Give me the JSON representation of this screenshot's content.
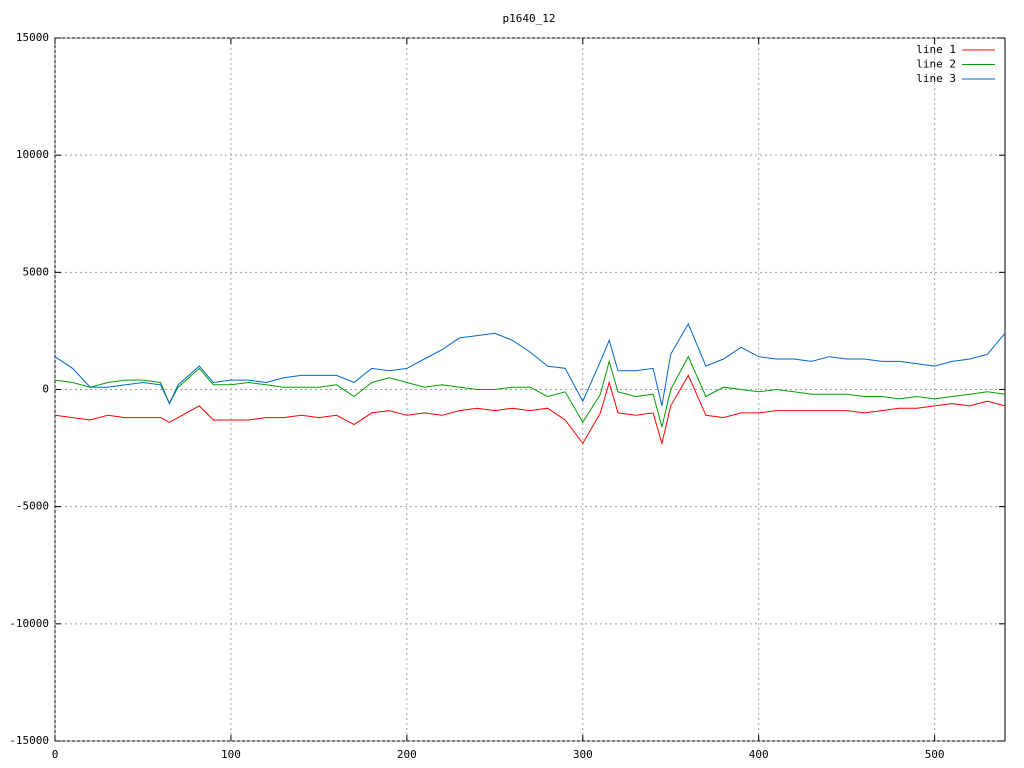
{
  "chart_data": {
    "type": "line",
    "title": "p1640_12",
    "x": [
      0,
      10,
      20,
      30,
      40,
      50,
      60,
      65,
      70,
      82,
      90,
      100,
      110,
      120,
      130,
      140,
      150,
      160,
      170,
      180,
      190,
      200,
      210,
      220,
      230,
      240,
      250,
      260,
      270,
      280,
      290,
      300,
      310,
      315,
      320,
      330,
      340,
      345,
      350,
      360,
      370,
      380,
      390,
      400,
      410,
      420,
      430,
      440,
      450,
      460,
      470,
      480,
      490,
      500,
      510,
      520,
      530,
      540
    ],
    "series": [
      {
        "name": "line 1",
        "color": "#ff0000",
        "values": [
          -1100,
          -1200,
          -1300,
          -1100,
          -1200,
          -1200,
          -1200,
          -1400,
          -1200,
          -700,
          -1300,
          -1300,
          -1300,
          -1200,
          -1200,
          -1100,
          -1200,
          -1100,
          -1500,
          -1000,
          -900,
          -1100,
          -1000,
          -1100,
          -900,
          -800,
          -900,
          -800,
          -900,
          -800,
          -1300,
          -2300,
          -1000,
          300,
          -1000,
          -1100,
          -1000,
          -2300,
          -700,
          600,
          -1100,
          -1200,
          -1000,
          -1000,
          -900,
          -900,
          -900,
          -900,
          -900,
          -1000,
          -900,
          -800,
          -800,
          -700,
          -600,
          -700,
          -500,
          -700
        ]
      },
      {
        "name": "line 2",
        "color": "#00a000",
        "values": [
          400,
          300,
          100,
          300,
          400,
          400,
          300,
          -600,
          100,
          900,
          200,
          200,
          300,
          200,
          100,
          100,
          100,
          200,
          -300,
          300,
          500,
          300,
          100,
          200,
          100,
          0,
          0,
          100,
          100,
          -300,
          -100,
          -1400,
          -200,
          1200,
          -100,
          -300,
          -200,
          -1600,
          0,
          1400,
          -300,
          100,
          0,
          -100,
          0,
          -100,
          -200,
          -200,
          -200,
          -300,
          -300,
          -400,
          -300,
          -400,
          -300,
          -200,
          -100,
          -200
        ]
      },
      {
        "name": "line 3",
        "color": "#0066cc",
        "values": [
          1400,
          900,
          100,
          100,
          200,
          300,
          200,
          -600,
          200,
          1000,
          300,
          400,
          400,
          300,
          500,
          600,
          600,
          600,
          300,
          900,
          800,
          900,
          1300,
          1700,
          2200,
          2300,
          2400,
          2100,
          1600,
          1000,
          900,
          -500,
          1200,
          2100,
          800,
          800,
          900,
          -700,
          1500,
          2800,
          1000,
          1300,
          1800,
          1400,
          1300,
          1300,
          1200,
          1400,
          1300,
          1300,
          1200,
          1200,
          1100,
          1000,
          1200,
          1300,
          1500,
          2400
        ]
      }
    ],
    "xlim": [
      0,
      540
    ],
    "xticks": [
      0,
      100,
      200,
      300,
      400,
      500
    ],
    "ylim": [
      -15000,
      15000
    ],
    "yticks": [
      -15000,
      -10000,
      -5000,
      0,
      5000,
      10000,
      15000
    ],
    "grid": true,
    "legend": "top-right"
  }
}
